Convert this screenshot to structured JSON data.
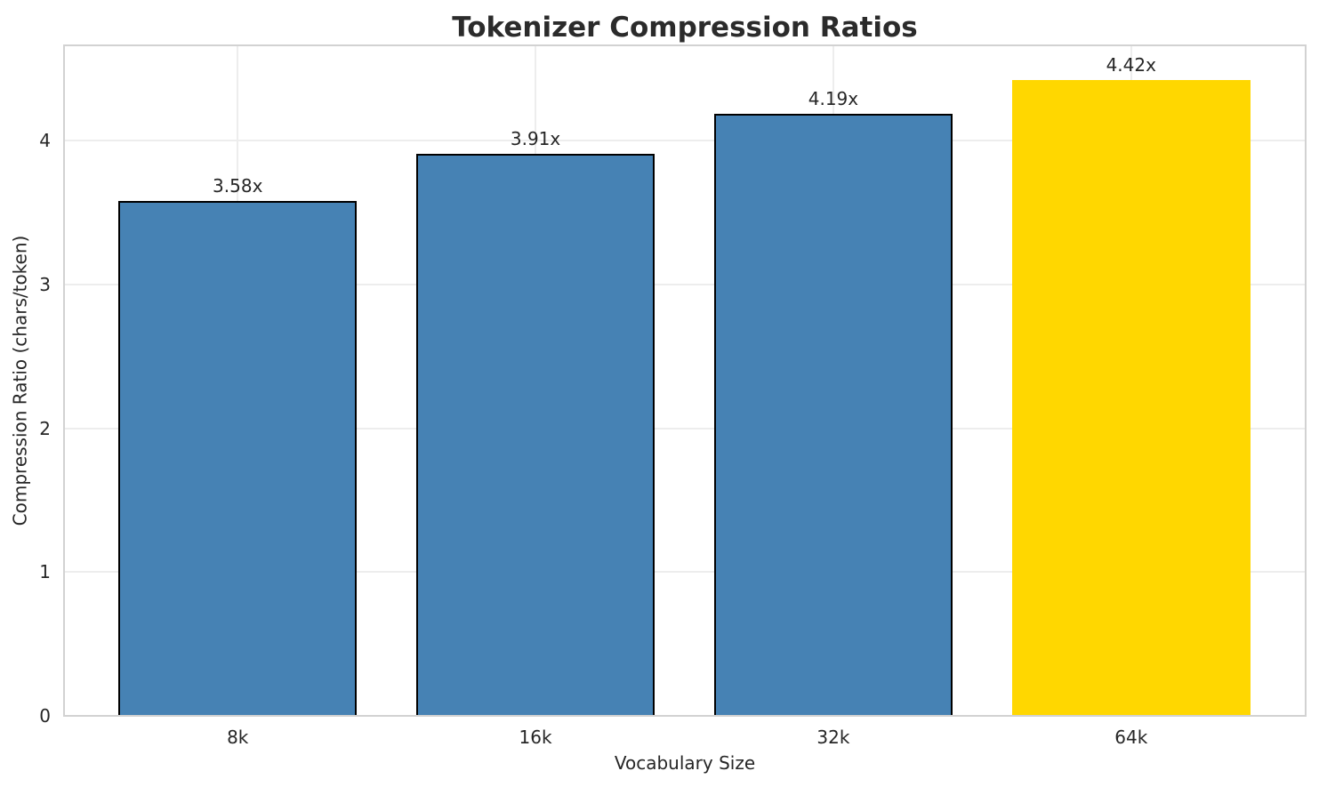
{
  "chart_data": {
    "type": "bar",
    "title": "Tokenizer Compression Ratios",
    "xlabel": "Vocabulary Size",
    "ylabel": "Compression Ratio (chars/token)",
    "categories": [
      "8k",
      "16k",
      "32k",
      "64k"
    ],
    "values": [
      3.58,
      3.91,
      4.19,
      4.42
    ],
    "value_labels": [
      "3.58x",
      "3.91x",
      "4.19x",
      "4.42x"
    ],
    "bar_colors": [
      "#4682B4",
      "#4682B4",
      "#4682B4",
      "#FFD700"
    ],
    "bar_edge_colors": [
      "#000000",
      "#000000",
      "#000000",
      "none"
    ],
    "base_color": "#4682B4",
    "highlight_color": "#FFD700",
    "edge_color": "#000000",
    "yticks": [
      "0",
      "1",
      "2",
      "3",
      "4"
    ],
    "ytick_values": [
      0,
      1,
      2,
      3,
      4
    ],
    "ylim": [
      0,
      4.67
    ],
    "xlim": [
      -0.586,
      3.586
    ],
    "bar_width": 0.8,
    "grid": true,
    "legend": "none",
    "background": "#ffffff",
    "grid_color": "#ededed",
    "spine_color": "#d2d2d2",
    "text_color": "#262626",
    "title_color": "#2b2b2b"
  }
}
